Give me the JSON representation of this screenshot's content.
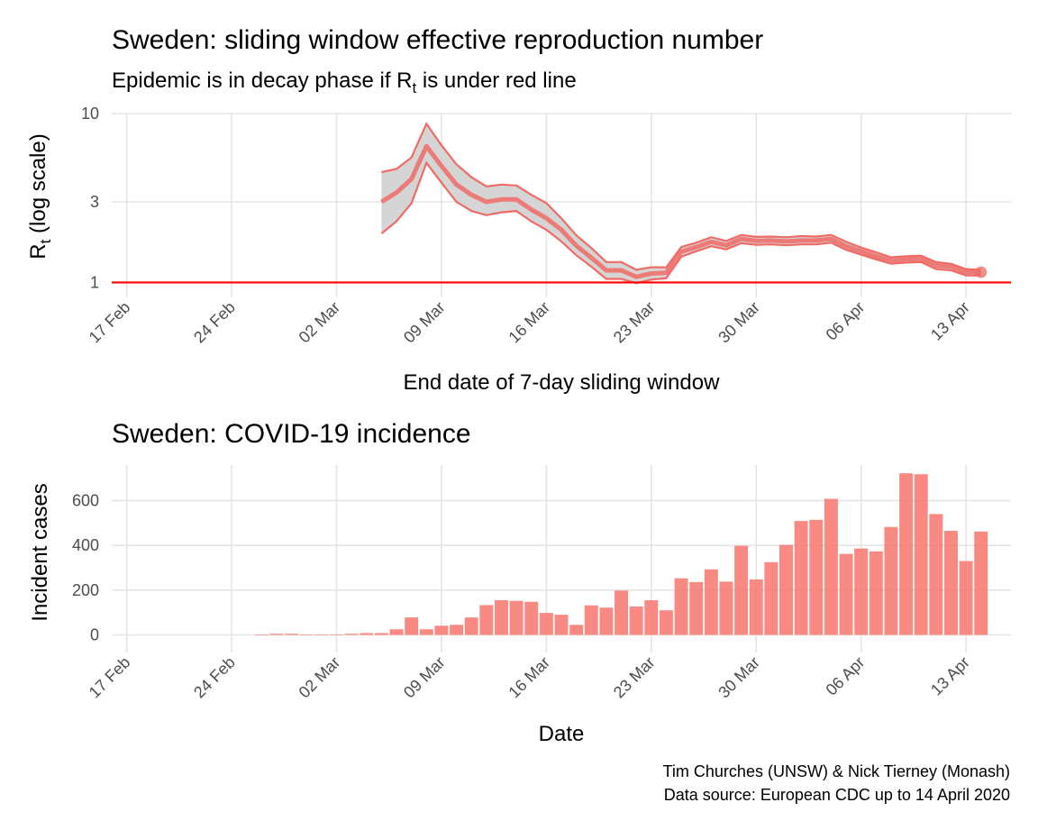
{
  "chart_data": [
    {
      "type": "line",
      "title": "Sweden: sliding window effective reproduction number",
      "subtitle_parts": {
        "before": "Epidemic is in decay phase if R",
        "sub": "t",
        "after": "  is under red line"
      },
      "xlabel": "End date of 7-day sliding window",
      "ylabel_parts": {
        "main": "R",
        "sub": "t",
        "after": " (log scale)"
      },
      "y_scale": "log",
      "ylim": [
        0.9,
        10
      ],
      "y_ticks": [
        1,
        3,
        10
      ],
      "y_tick_labels": [
        "1",
        "3",
        "10"
      ],
      "x_range": [
        "2020-02-16",
        "2020-04-16"
      ],
      "x_ticks": [
        "2020-02-17",
        "2020-02-24",
        "2020-03-02",
        "2020-03-09",
        "2020-03-16",
        "2020-03-23",
        "2020-03-30",
        "2020-04-06",
        "2020-04-13"
      ],
      "x_tick_labels": [
        "17 Feb",
        "24 Feb",
        "02 Mar",
        "09 Mar",
        "16 Mar",
        "23 Mar",
        "30 Mar",
        "06 Apr",
        "13 Apr"
      ],
      "grid": true,
      "reference_line": {
        "y": 1,
        "color": "#ff0000"
      },
      "colors": {
        "line": "#f06b66",
        "band": "#d3d3d3",
        "ref": "#ff0000"
      },
      "series": [
        {
          "x": [
            "2020-03-05",
            "2020-03-06",
            "2020-03-07",
            "2020-03-08",
            "2020-03-09",
            "2020-03-10",
            "2020-03-11",
            "2020-03-12",
            "2020-03-13",
            "2020-03-14",
            "2020-03-15",
            "2020-03-16",
            "2020-03-17",
            "2020-03-18",
            "2020-03-19",
            "2020-03-20",
            "2020-03-21",
            "2020-03-22",
            "2020-03-23",
            "2020-03-24",
            "2020-03-25",
            "2020-03-26",
            "2020-03-27",
            "2020-03-28",
            "2020-03-29",
            "2020-03-30",
            "2020-03-31",
            "2020-04-01",
            "2020-04-02",
            "2020-04-03",
            "2020-04-04",
            "2020-04-05",
            "2020-04-06",
            "2020-04-07",
            "2020-04-08",
            "2020-04-09",
            "2020-04-10",
            "2020-04-11",
            "2020-04-12",
            "2020-04-13",
            "2020-04-14"
          ],
          "mean": [
            3.0,
            3.4,
            4.1,
            6.4,
            4.9,
            3.8,
            3.3,
            3.0,
            3.1,
            3.1,
            2.7,
            2.4,
            2.05,
            1.65,
            1.4,
            1.18,
            1.18,
            1.08,
            1.13,
            1.14,
            1.52,
            1.62,
            1.74,
            1.66,
            1.81,
            1.76,
            1.77,
            1.75,
            1.77,
            1.77,
            1.81,
            1.64,
            1.53,
            1.43,
            1.35,
            1.37,
            1.38,
            1.26,
            1.24,
            1.15,
            1.15
          ],
          "lower": [
            1.95,
            2.3,
            2.95,
            5.1,
            3.9,
            3.0,
            2.65,
            2.5,
            2.6,
            2.65,
            2.3,
            2.05,
            1.75,
            1.45,
            1.24,
            1.05,
            1.05,
            0.99,
            1.04,
            1.06,
            1.42,
            1.53,
            1.64,
            1.57,
            1.71,
            1.67,
            1.68,
            1.66,
            1.68,
            1.68,
            1.72,
            1.56,
            1.46,
            1.37,
            1.29,
            1.31,
            1.32,
            1.2,
            1.18,
            1.1,
            1.1
          ],
          "upper": [
            4.5,
            4.7,
            5.5,
            8.7,
            6.5,
            5.0,
            4.2,
            3.7,
            3.8,
            3.75,
            3.3,
            2.95,
            2.4,
            1.9,
            1.6,
            1.32,
            1.32,
            1.19,
            1.23,
            1.23,
            1.62,
            1.72,
            1.85,
            1.76,
            1.91,
            1.86,
            1.87,
            1.85,
            1.88,
            1.87,
            1.91,
            1.74,
            1.61,
            1.51,
            1.41,
            1.43,
            1.44,
            1.32,
            1.29,
            1.2,
            1.19
          ]
        }
      ]
    },
    {
      "type": "bar",
      "title": "Sweden: COVID-19 incidence",
      "xlabel": "Date",
      "ylabel": "Incident cases",
      "ylim": [
        0,
        760
      ],
      "y_ticks": [
        0,
        200,
        400,
        600
      ],
      "y_tick_labels": [
        "0",
        "200",
        "400",
        "600"
      ],
      "x_range": [
        "2020-02-16",
        "2020-04-16"
      ],
      "x_ticks": [
        "2020-02-17",
        "2020-02-24",
        "2020-03-02",
        "2020-03-09",
        "2020-03-16",
        "2020-03-23",
        "2020-03-30",
        "2020-04-06",
        "2020-04-13"
      ],
      "x_tick_labels": [
        "17 Feb",
        "24 Feb",
        "02 Mar",
        "09 Mar",
        "16 Mar",
        "23 Mar",
        "30 Mar",
        "06 Apr",
        "13 Apr"
      ],
      "grid": true,
      "colors": {
        "bar": "#f8766d"
      },
      "dates": [
        "2020-02-26",
        "2020-02-27",
        "2020-02-28",
        "2020-02-29",
        "2020-03-01",
        "2020-03-02",
        "2020-03-03",
        "2020-03-04",
        "2020-03-05",
        "2020-03-06",
        "2020-03-07",
        "2020-03-08",
        "2020-03-09",
        "2020-03-10",
        "2020-03-11",
        "2020-03-12",
        "2020-03-13",
        "2020-03-14",
        "2020-03-15",
        "2020-03-16",
        "2020-03-17",
        "2020-03-18",
        "2020-03-19",
        "2020-03-20",
        "2020-03-21",
        "2020-03-22",
        "2020-03-23",
        "2020-03-24",
        "2020-03-25",
        "2020-03-26",
        "2020-03-27",
        "2020-03-28",
        "2020-03-29",
        "2020-03-30",
        "2020-03-31",
        "2020-04-01",
        "2020-04-02",
        "2020-04-03",
        "2020-04-04",
        "2020-04-05",
        "2020-04-06",
        "2020-04-07",
        "2020-04-08",
        "2020-04-09",
        "2020-04-10",
        "2020-04-11",
        "2020-04-12",
        "2020-04-13",
        "2020-04-14"
      ],
      "values": [
        1,
        5,
        5,
        2,
        1,
        2,
        5,
        8,
        8,
        25,
        78,
        25,
        41,
        45,
        78,
        133,
        155,
        152,
        148,
        98,
        90,
        45,
        132,
        122,
        198,
        127,
        155,
        110,
        253,
        236,
        293,
        238,
        398,
        248,
        325,
        402,
        509,
        514,
        608,
        362,
        386,
        373,
        482,
        722,
        718,
        540,
        465,
        330,
        462
      ]
    }
  ],
  "caption": [
    "Tim Churches (UNSW) & Nick Tierney (Monash)",
    "Data source: European CDC up to 14 April 2020"
  ]
}
